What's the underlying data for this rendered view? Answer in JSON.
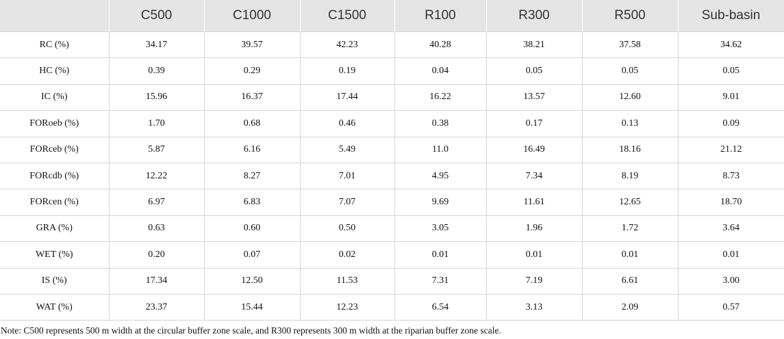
{
  "header": {
    "columns": [
      "",
      "C500",
      "C1000",
      "C1500",
      "R100",
      "R300",
      "R500",
      "Sub-basin"
    ]
  },
  "table": {
    "rows": [
      [
        "RC (%)",
        "34.17",
        "39.57",
        "42.23",
        "40.28",
        "38.21",
        "37.58",
        "34.62"
      ],
      [
        "HC (%)",
        "0.39",
        "0.29",
        "0.19",
        "0.04",
        "0.05",
        "0.05",
        "0.05"
      ],
      [
        "IC (%)",
        "15.96",
        "16.37",
        "17.44",
        "16.22",
        "13.57",
        "12.60",
        "9.01"
      ],
      [
        "FORoeb (%)",
        "1.70",
        "0.68",
        "0.46",
        "0.38",
        "0.17",
        "0.13",
        "0.09"
      ],
      [
        "FORceb (%)",
        "5.87",
        "6.16",
        "5.49",
        "11.0",
        "16.49",
        "18.16",
        "21.12"
      ],
      [
        "FORcdb (%)",
        "12.22",
        "8.27",
        "7.01",
        "4.95",
        "7.34",
        "8.19",
        "8.73"
      ],
      [
        "FORcen (%)",
        "6.97",
        "6.83",
        "7.07",
        "9.69",
        "11.61",
        "12.65",
        "18.70"
      ],
      [
        "GRA (%)",
        "0.63",
        "0.60",
        "0.50",
        "3.05",
        "1.96",
        "1.72",
        "3.64"
      ],
      [
        "WET (%)",
        "0.20",
        "0.07",
        "0.02",
        "0.01",
        "0.01",
        "0.01",
        "0.01"
      ],
      [
        "IS (%)",
        "17.34",
        "12.50",
        "11.53",
        "7.31",
        "7.19",
        "6.61",
        "3.00"
      ],
      [
        "WAT (%)",
        "23.37",
        "15.44",
        "12.23",
        "6.54",
        "3.13",
        "2.09",
        "0.57"
      ]
    ]
  },
  "note": "Note: C500 represents 500 m width at the circular buffer zone scale, and R300 represents 300 m width at the riparian buffer zone scale."
}
